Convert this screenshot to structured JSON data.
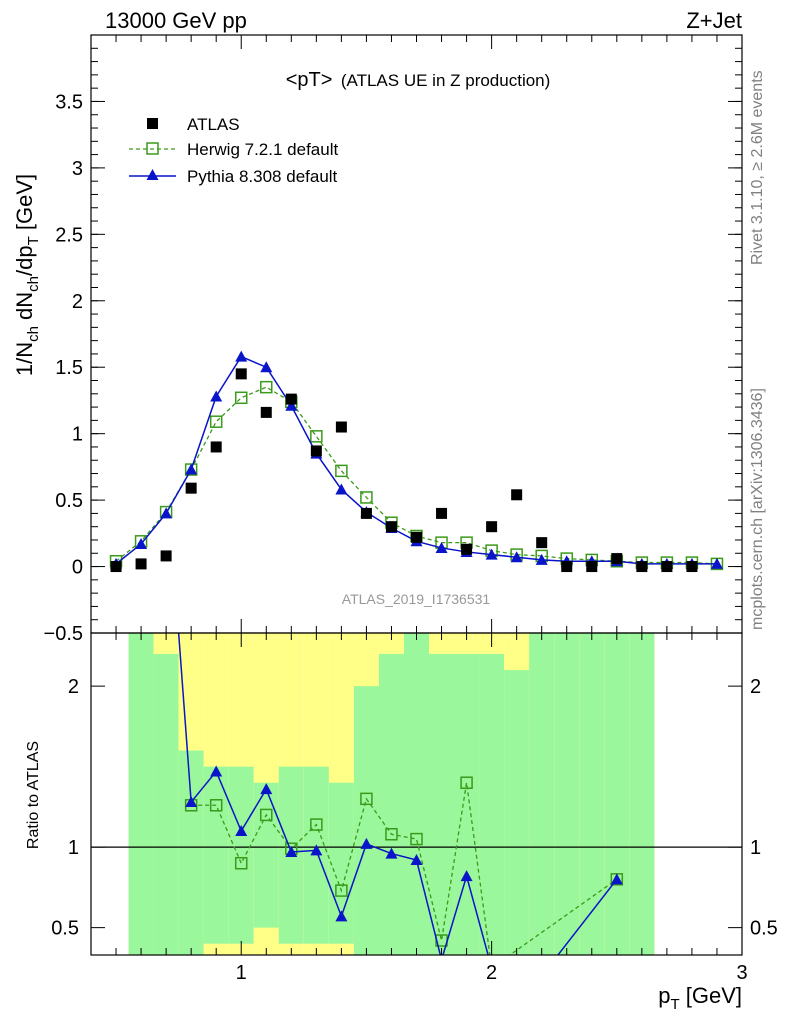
{
  "header": {
    "left": "13000 GeV pp",
    "right": "Z+Jet"
  },
  "side_text": {
    "top": "Rivet 3.1.10, ≥ 2.6M events",
    "bottom": "mcplots.cern.ch [arXiv:1306.3436]"
  },
  "watermark": "ATLAS_2019_I1736531",
  "colors": {
    "atlas": "#000000",
    "herwig": "#3a9a1a",
    "pythia": "#0a14c8",
    "band_green": "#9bf79b",
    "band_yellow": "#ffff88"
  },
  "chart_data": [
    {
      "type": "scatter",
      "title": "<pT> (ATLAS UE in Z production)",
      "title_main": "<pT>",
      "title_sub": "(ATLAS UE in Z production)",
      "ylabel": "1/N_ch dN_ch/dp_T [GeV]",
      "ylabel_parts": {
        "a": "1/N",
        "b": "ch",
        "c": " dN",
        "d": "ch",
        "e": "/dp",
        "f": "T",
        "g": " [GeV]"
      },
      "xlim": [
        0.4,
        3.0
      ],
      "ylim": [
        -0.5,
        4.0
      ],
      "yticks": [
        "−0.5",
        "0",
        "0.5",
        "1",
        "1.5",
        "2",
        "2.5",
        "3",
        "3.5"
      ],
      "ytick_values": [
        -0.5,
        0,
        0.5,
        1,
        1.5,
        2,
        2.5,
        3,
        3.5
      ],
      "legend_position": "top-left",
      "series": [
        {
          "name": "ATLAS",
          "style": "square-marker",
          "x": [
            0.5,
            0.6,
            0.7,
            0.8,
            0.9,
            1.0,
            1.1,
            1.2,
            1.3,
            1.4,
            1.5,
            1.6,
            1.7,
            1.8,
            1.9,
            2.0,
            2.1,
            2.2,
            2.3,
            2.4,
            2.5,
            2.6,
            2.7,
            2.8
          ],
          "y": [
            0.0,
            0.02,
            0.08,
            0.59,
            0.9,
            1.45,
            1.16,
            1.26,
            0.87,
            1.05,
            0.4,
            0.3,
            0.22,
            0.4,
            0.13,
            0.3,
            0.54,
            0.18,
            0.0,
            0.0,
            0.06,
            0.0,
            0.0,
            0.0
          ]
        },
        {
          "name": "Herwig 7.2.1 default",
          "style": "dashed-open-square",
          "x": [
            0.5,
            0.6,
            0.7,
            0.8,
            0.9,
            1.0,
            1.1,
            1.2,
            1.3,
            1.4,
            1.5,
            1.6,
            1.7,
            1.8,
            1.9,
            2.0,
            2.1,
            2.2,
            2.3,
            2.4,
            2.5,
            2.6,
            2.7,
            2.8,
            2.9
          ],
          "y": [
            0.04,
            0.19,
            0.41,
            0.73,
            1.09,
            1.27,
            1.35,
            1.24,
            0.98,
            0.72,
            0.52,
            0.33,
            0.23,
            0.18,
            0.18,
            0.12,
            0.09,
            0.08,
            0.06,
            0.05,
            0.04,
            0.03,
            0.03,
            0.03,
            0.02
          ]
        },
        {
          "name": "Pythia 8.308 default",
          "style": "solid-triangle",
          "x": [
            0.5,
            0.6,
            0.7,
            0.8,
            0.9,
            1.0,
            1.1,
            1.2,
            1.3,
            1.4,
            1.5,
            1.6,
            1.7,
            1.8,
            1.9,
            2.0,
            2.1,
            2.2,
            2.3,
            2.4,
            2.5,
            2.6,
            2.7,
            2.8,
            2.9
          ],
          "y": [
            0.02,
            0.17,
            0.4,
            0.73,
            1.28,
            1.58,
            1.5,
            1.21,
            0.85,
            0.58,
            0.41,
            0.29,
            0.19,
            0.14,
            0.11,
            0.09,
            0.07,
            0.05,
            0.04,
            0.04,
            0.04,
            0.02,
            0.02,
            0.02,
            0.02
          ]
        }
      ]
    },
    {
      "type": "line",
      "ylabel": "Ratio to ATLAS",
      "xlabel": "p_T [GeV]",
      "xlabel_parts": {
        "a": "p",
        "b": "T",
        "c": " [GeV]"
      },
      "xlim": [
        0.4,
        3.0
      ],
      "ylim": [
        0.33,
        2.33
      ],
      "xticks": [
        "1",
        "2",
        "3"
      ],
      "xtick_values": [
        1,
        2,
        3
      ],
      "yticks": [
        "0.5",
        "1",
        "2"
      ],
      "ytick_values": [
        0.5,
        1,
        2
      ],
      "reference_line": 1,
      "bands": {
        "bin_edges": [
          0.55,
          0.65,
          0.75,
          0.85,
          0.95,
          1.05,
          1.15,
          1.25,
          1.35,
          1.45,
          1.55,
          1.65,
          1.75,
          1.85,
          1.95,
          2.05,
          2.15,
          2.25,
          2.35,
          2.45,
          2.55,
          2.65,
          2.75
        ],
        "green_lo": [
          0.33,
          0.33,
          0.33,
          0.4,
          0.4,
          0.5,
          0.4,
          0.4,
          0.4,
          0.33,
          0.33,
          0.33,
          0.33,
          0.33,
          0.33,
          0.33,
          0.33,
          0.33,
          0.33,
          0.33,
          0.33,
          null
        ],
        "green_hi": [
          2.33,
          2.2,
          1.6,
          1.5,
          1.5,
          1.4,
          1.5,
          1.5,
          1.4,
          2.0,
          2.2,
          2.33,
          2.2,
          2.2,
          2.2,
          2.1,
          2.33,
          2.33,
          2.33,
          2.33,
          2.33,
          null
        ],
        "yellow_lo": [
          0.33,
          0.33,
          0.33,
          0.33,
          0.33,
          0.33,
          0.33,
          0.33,
          0.33,
          0.33,
          0.33,
          0.33,
          0.33,
          0.33,
          0.33,
          0.33,
          0.33,
          0.33,
          0.33,
          0.33,
          0.33,
          null
        ],
        "yellow_hi": [
          2.33,
          2.33,
          2.33,
          2.33,
          2.33,
          2.33,
          2.33,
          2.33,
          2.33,
          2.33,
          2.33,
          2.33,
          2.33,
          2.33,
          2.33,
          2.33,
          2.33,
          2.33,
          2.33,
          2.33,
          2.33,
          null
        ]
      },
      "series": [
        {
          "name": "Herwig 7.2.1 default",
          "x": [
            0.8,
            0.9,
            1.0,
            1.1,
            1.2,
            1.3,
            1.4,
            1.5,
            1.6,
            1.7,
            1.8,
            1.9,
            2.0,
            2.5
          ],
          "y": [
            1.26,
            1.26,
            0.9,
            1.2,
            0.99,
            1.14,
            0.73,
            1.3,
            1.08,
            1.05,
            0.42,
            1.4,
            0.25,
            0.8
          ]
        },
        {
          "name": "Pythia 8.308 default",
          "x": [
            0.8,
            0.9,
            1.0,
            1.1,
            1.2,
            1.3,
            1.4,
            1.5,
            1.6,
            1.7,
            1.8,
            1.9,
            2.0,
            2.2,
            2.5
          ],
          "y": [
            1.28,
            1.47,
            1.1,
            1.36,
            0.97,
            0.98,
            0.57,
            1.02,
            0.96,
            0.92,
            0.3,
            0.82,
            0.25,
            0.2,
            0.8
          ]
        }
      ]
    }
  ]
}
